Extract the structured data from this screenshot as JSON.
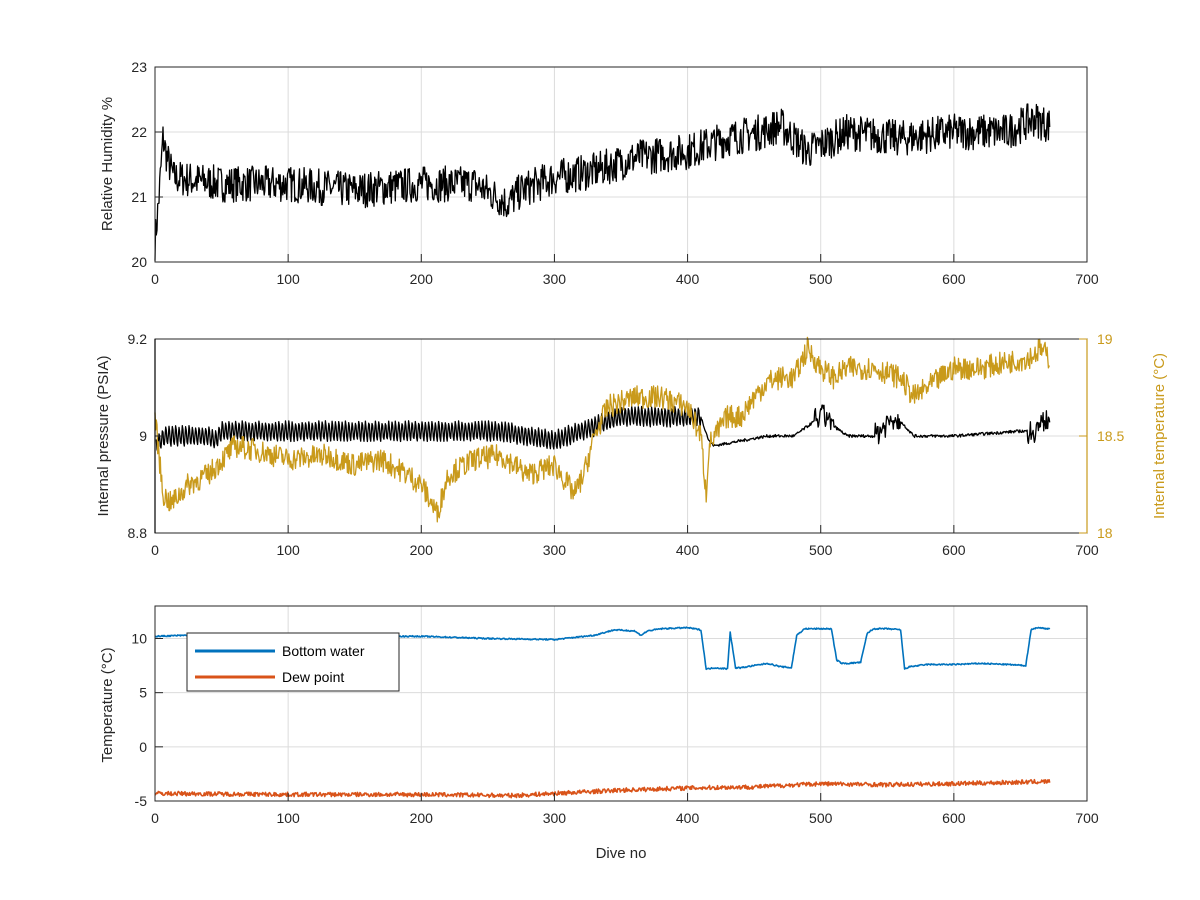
{
  "figure": {
    "background": "#ffffff",
    "grid_color": "#dcdcdc",
    "axis_color": "#262626"
  },
  "chart_data": [
    {
      "type": "line",
      "xlabel": "",
      "ylabel": "Relative Humidity %",
      "xlim": [
        0,
        700
      ],
      "ylim": [
        20,
        23
      ],
      "xticks": [
        0,
        100,
        200,
        300,
        400,
        500,
        600,
        700
      ],
      "yticks": [
        20,
        21,
        22,
        23
      ],
      "grid": true,
      "series": [
        {
          "color": "#000000",
          "noise": 0.28,
          "x": [
            0,
            3,
            6,
            9,
            14,
            50,
            100,
            150,
            200,
            240,
            265,
            275,
            300,
            330,
            360,
            400,
            430,
            455,
            470,
            490,
            520,
            560,
            600,
            640,
            660,
            672
          ],
          "values": [
            20.3,
            21.0,
            21.9,
            21.6,
            21.3,
            21.2,
            21.2,
            21.1,
            21.2,
            21.2,
            20.9,
            21.1,
            21.3,
            21.4,
            21.6,
            21.7,
            21.9,
            22.0,
            22.1,
            21.7,
            22.0,
            21.9,
            22.0,
            22.0,
            22.2,
            22.1
          ]
        }
      ]
    },
    {
      "type": "line",
      "xlabel": "",
      "ylabel": "Internal pressure (PSIA)",
      "y2label": "Internal temperature (°C)",
      "xlim": [
        0,
        700
      ],
      "ylim": [
        8.8,
        9.2
      ],
      "y2lim": [
        18,
        19
      ],
      "xticks": [
        0,
        100,
        200,
        300,
        400,
        500,
        600,
        700
      ],
      "yticks": [
        8.8,
        9,
        9.2
      ],
      "y2ticks": [
        18,
        18.5,
        19
      ],
      "grid": true,
      "series": [
        {
          "color": "#000000",
          "axis": "left",
          "oscillation_end": 410,
          "osc_amplitude": 0.045,
          "x": [
            0,
            8,
            40,
            45,
            50,
            100,
            200,
            260,
            300,
            330,
            350,
            400,
            410,
            416,
            420,
            440,
            460,
            480,
            490,
            500,
            505,
            510,
            520,
            540,
            555,
            560,
            570,
            600,
            650,
            660,
            672
          ],
          "values": [
            8.98,
            9.0,
            9.0,
            8.99,
            9.01,
            9.01,
            9.01,
            9.01,
            8.99,
            9.02,
            9.04,
            9.04,
            9.04,
            8.99,
            8.98,
            8.99,
            9.0,
            9.0,
            9.02,
            9.04,
            9.04,
            9.02,
            9.0,
            9.0,
            9.04,
            9.03,
            9.0,
            9.0,
            9.01,
            9.01,
            9.04
          ]
        },
        {
          "color": "#c99a1b",
          "axis": "right",
          "x": [
            0,
            6,
            12,
            25,
            40,
            60,
            80,
            100,
            130,
            150,
            170,
            190,
            200,
            212,
            220,
            240,
            260,
            280,
            300,
            315,
            322,
            330,
            340,
            360,
            380,
            400,
            410,
            414,
            416,
            430,
            440,
            450,
            460,
            470,
            480,
            490,
            500,
            510,
            520,
            540,
            560,
            570,
            580,
            600,
            620,
            640,
            655,
            660,
            665,
            672
          ],
          "values": [
            18.6,
            18.2,
            18.15,
            18.25,
            18.3,
            18.45,
            18.42,
            18.38,
            18.4,
            18.35,
            18.38,
            18.3,
            18.25,
            18.1,
            18.3,
            18.38,
            18.4,
            18.3,
            18.35,
            18.2,
            18.3,
            18.5,
            18.65,
            18.7,
            18.7,
            18.65,
            18.5,
            18.2,
            18.45,
            18.6,
            18.6,
            18.7,
            18.78,
            18.8,
            18.8,
            18.95,
            18.85,
            18.8,
            18.85,
            18.85,
            18.8,
            18.7,
            18.75,
            18.85,
            18.85,
            18.88,
            18.9,
            18.92,
            18.95,
            18.9
          ]
        }
      ]
    },
    {
      "type": "line",
      "xlabel": "Dive no",
      "ylabel": "Temperature (°C)",
      "xlim": [
        0,
        700
      ],
      "ylim": [
        -5,
        13
      ],
      "xticks": [
        0,
        100,
        200,
        300,
        400,
        500,
        600,
        700
      ],
      "yticks": [
        -5,
        0,
        5,
        10
      ],
      "grid": true,
      "legend": "top-left",
      "series": [
        {
          "name": "Bottom water",
          "color": "#0072bd",
          "x": [
            0,
            50,
            100,
            150,
            200,
            250,
            300,
            330,
            345,
            360,
            365,
            370,
            380,
            400,
            410,
            414,
            416,
            420,
            430,
            432,
            436,
            440,
            460,
            470,
            478,
            482,
            488,
            500,
            508,
            512,
            516,
            520,
            530,
            535,
            540,
            550,
            560,
            563,
            567,
            580,
            600,
            620,
            640,
            654,
            658,
            662,
            672
          ],
          "values": [
            10.2,
            10.4,
            10.4,
            10.2,
            10.2,
            10.0,
            9.9,
            10.3,
            10.8,
            10.7,
            10.3,
            10.7,
            10.9,
            11.0,
            10.8,
            7.2,
            7.2,
            7.3,
            7.2,
            10.6,
            7.3,
            7.3,
            7.7,
            7.4,
            7.3,
            10.3,
            10.9,
            10.9,
            10.9,
            8.0,
            7.7,
            7.7,
            7.8,
            10.5,
            10.9,
            10.9,
            10.8,
            7.2,
            7.4,
            7.6,
            7.6,
            7.7,
            7.6,
            7.5,
            10.8,
            11.0,
            10.9
          ]
        },
        {
          "name": "Dew point",
          "color": "#d95319",
          "noise": 0.2,
          "x": [
            0,
            100,
            200,
            270,
            300,
            350,
            400,
            450,
            500,
            550,
            600,
            672
          ],
          "values": [
            -4.3,
            -4.4,
            -4.4,
            -4.5,
            -4.3,
            -4.0,
            -3.8,
            -3.7,
            -3.4,
            -3.5,
            -3.4,
            -3.2
          ]
        }
      ]
    }
  ]
}
